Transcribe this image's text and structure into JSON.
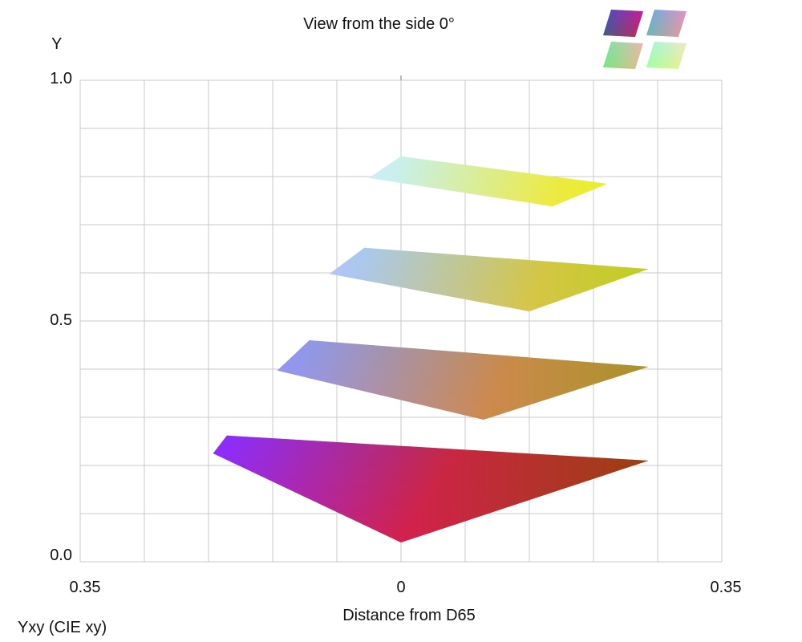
{
  "chart_data": {
    "type": "area",
    "title": "View from the side 0°",
    "ylabel": "Y",
    "xlabel": "Distance from D65",
    "color_space_label": "Yxy (CIE xy)",
    "x_ticks": [
      "0.35",
      "0",
      "0.35"
    ],
    "x_tick_values": [
      -0.35,
      0,
      0.35
    ],
    "y_ticks": [
      "1.0",
      "0.5",
      "0.0"
    ],
    "y_tick_values": [
      1.0,
      0.5,
      0.0
    ],
    "xlim": [
      -0.35,
      0.35
    ],
    "ylim": [
      0.0,
      1.0
    ],
    "grid": true,
    "slices": [
      {
        "y": 0.2,
        "points": [
          [
            -0.205,
            0.225
          ],
          [
            -0.19,
            0.262
          ],
          [
            0.27,
            0.21
          ],
          [
            0,
            0.04
          ]
        ],
        "colors": [
          "#ff00ff",
          "#3050ff",
          "#207a10",
          "#ff1010"
        ]
      },
      {
        "y": 0.4,
        "points": [
          [
            -0.135,
            0.397
          ],
          [
            -0.1,
            0.46
          ],
          [
            0.27,
            0.405
          ],
          [
            0.09,
            0.295
          ]
        ],
        "colors": [
          "#ff80e0",
          "#40a8ff",
          "#40b020",
          "#ff7a30"
        ]
      },
      {
        "y": 0.6,
        "points": [
          [
            -0.078,
            0.598
          ],
          [
            -0.04,
            0.652
          ],
          [
            0.27,
            0.608
          ],
          [
            0.14,
            0.52
          ]
        ],
        "colors": [
          "#ffa8f0",
          "#70ddff",
          "#70e010",
          "#ffc030"
        ]
      },
      {
        "y": 0.8,
        "points": [
          [
            -0.035,
            0.797
          ],
          [
            0,
            0.842
          ],
          [
            0.225,
            0.785
          ],
          [
            0.165,
            0.738
          ]
        ],
        "colors": [
          "#ffd8f0",
          "#a0ffff",
          "#ccff10",
          "#ffe040"
        ]
      }
    ],
    "thumbnails": [
      {
        "colors": [
          "#3030ff",
          "#ff20a0",
          "#c01040",
          "#209060"
        ]
      },
      {
        "colors": [
          "#60b0ff",
          "#ff80d0",
          "#ffa080",
          "#40c0a0"
        ]
      },
      {
        "colors": [
          "#80ffa0",
          "#ff90e0",
          "#ffd060",
          "#40e080"
        ]
      },
      {
        "colors": [
          "#a0ffff",
          "#ffd0f0",
          "#ffff60",
          "#80ff80"
        ]
      }
    ]
  }
}
